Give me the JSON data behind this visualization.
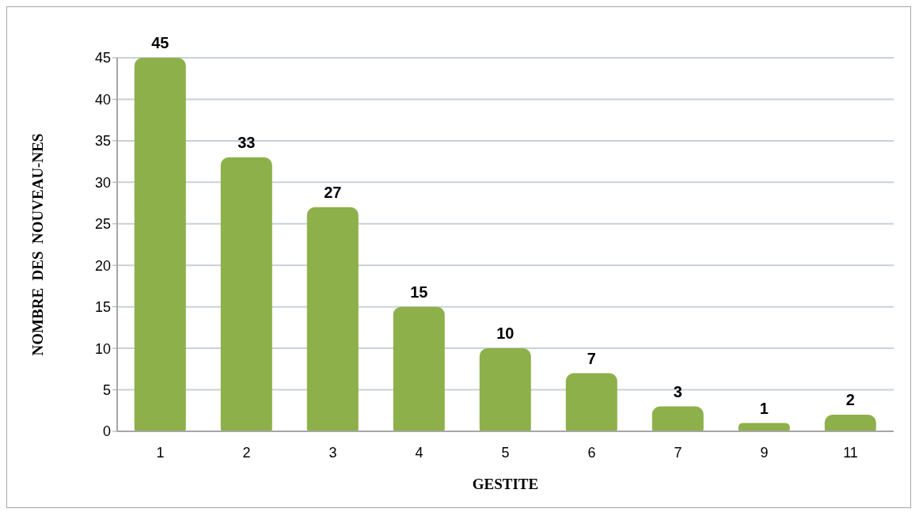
{
  "chart_data": {
    "type": "bar",
    "xlabel": "GESTITE",
    "ylabel": "NOMBRE  DES  NOUVEAU-NES",
    "categories": [
      "1",
      "2",
      "3",
      "4",
      "5",
      "6",
      "7",
      "9",
      "11"
    ],
    "values": [
      45,
      33,
      27,
      15,
      10,
      7,
      3,
      1,
      2
    ],
    "color": "#8db04a",
    "ylim": [
      0,
      45
    ],
    "yticks": [
      0,
      5,
      10,
      15,
      20,
      25,
      30,
      35,
      40,
      45
    ],
    "grid": "y",
    "data_labels": true
  }
}
